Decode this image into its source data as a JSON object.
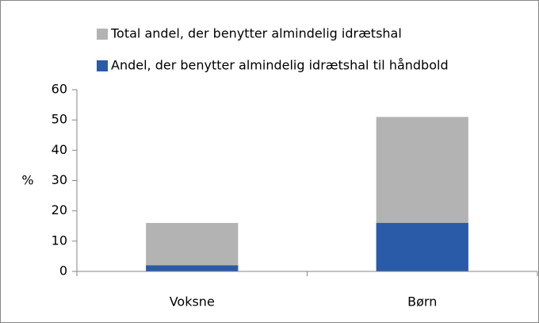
{
  "chart_data": {
    "type": "bar",
    "overlap": true,
    "categories": [
      "Voksne",
      "Børn"
    ],
    "series": [
      {
        "name": "Total andel, der benytter almindelig idrætshal",
        "color": "#b3b3b3",
        "values": [
          16,
          51
        ]
      },
      {
        "name": "Andel, der benytter almindelig idrætshal til håndbold",
        "color": "#2a5ba8",
        "values": [
          2,
          16
        ]
      }
    ],
    "ylabel": "%",
    "ylim": [
      0,
      60
    ],
    "yticks": [
      0,
      10,
      20,
      30,
      40,
      50,
      60
    ],
    "grid": false
  }
}
